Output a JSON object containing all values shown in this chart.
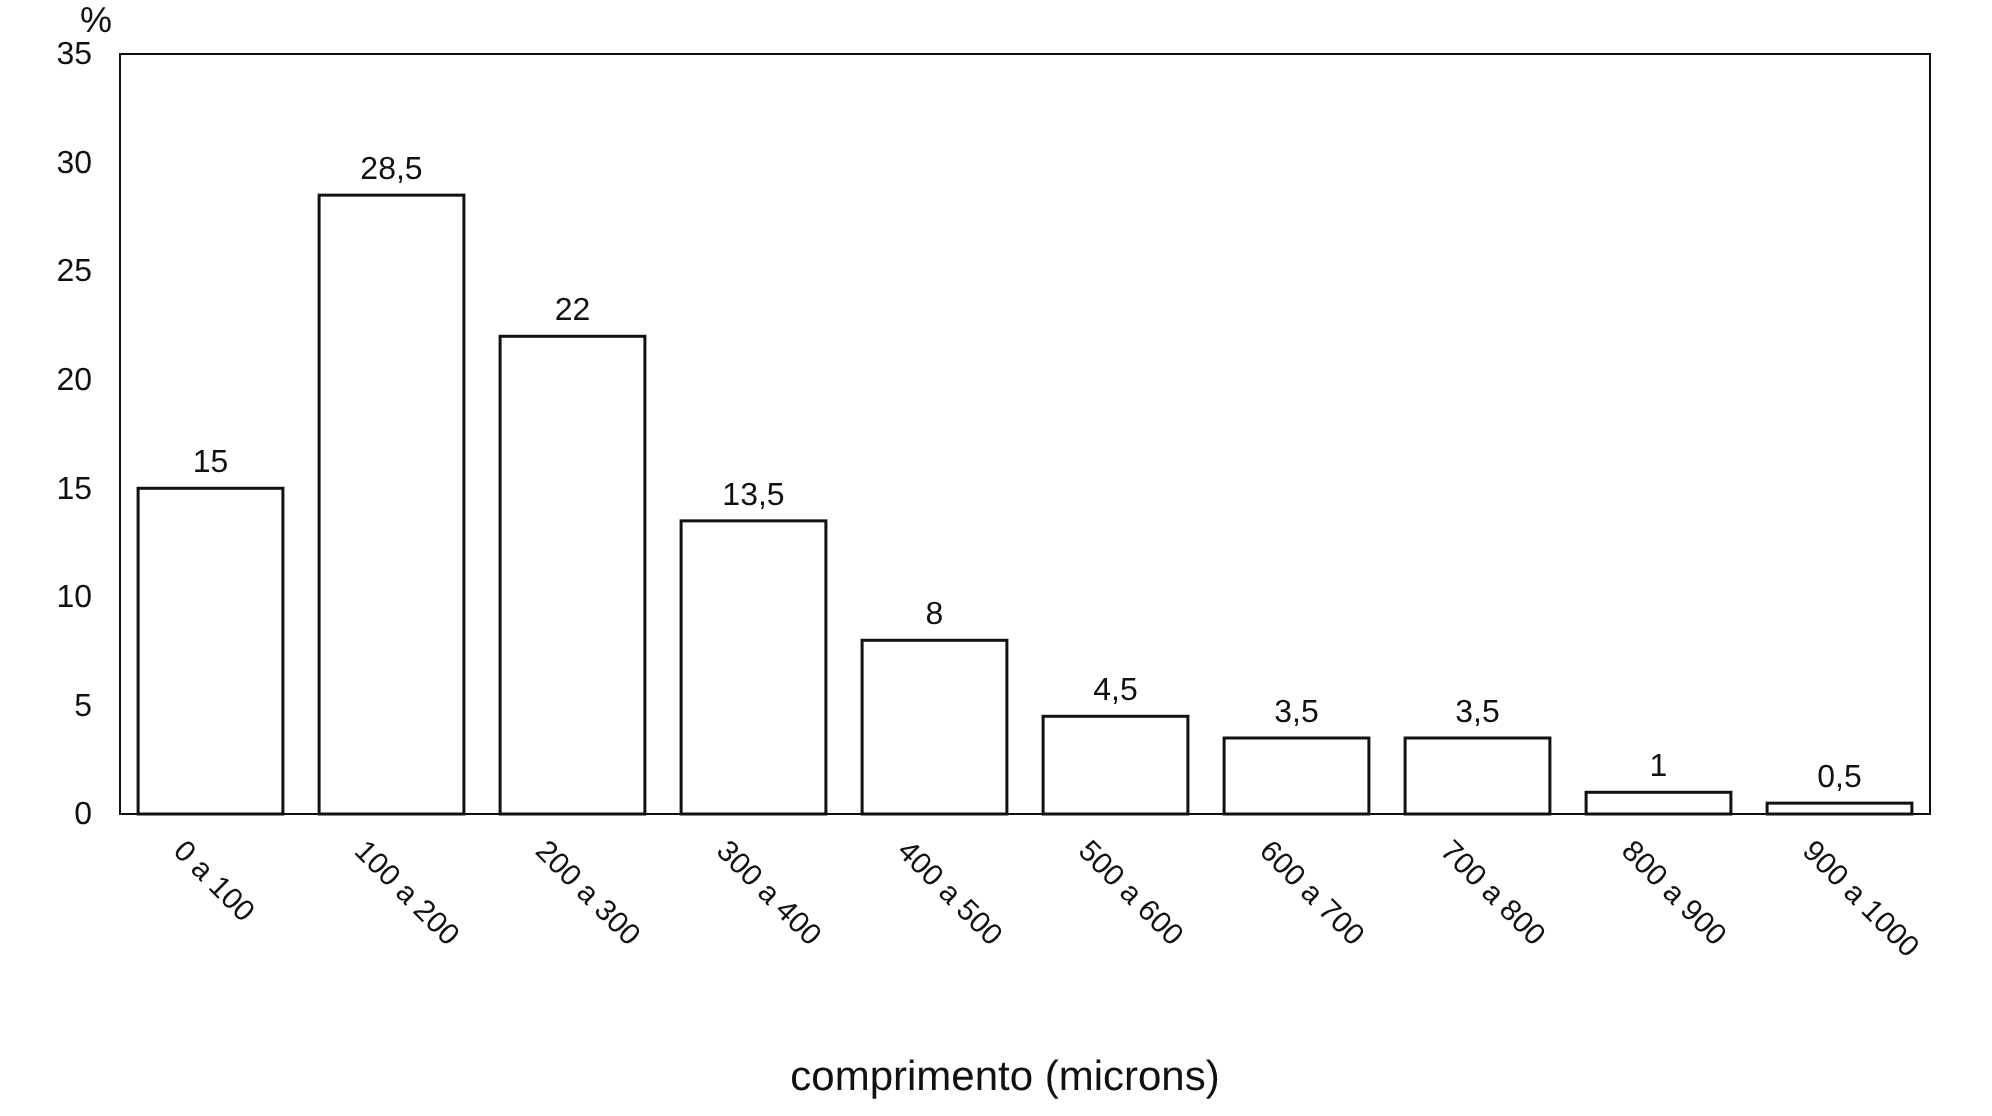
{
  "chart_data": {
    "type": "bar",
    "xlabel": "comprimento (microns)",
    "ylabel": "%",
    "categories": [
      "0 a 100",
      "100 a 200",
      "200 a 300",
      "300 a 400",
      "400 a 500",
      "500 a 600",
      "600 a 700",
      "700 a 800",
      "800 a 900",
      "900 a 1000"
    ],
    "values": [
      15,
      28.5,
      22,
      13.5,
      8,
      4.5,
      3.5,
      3.5,
      1,
      0.5
    ],
    "value_labels": [
      "15",
      "28,5",
      "22",
      "13,5",
      "8",
      "4,5",
      "3,5",
      "3,5",
      "1",
      "0,5"
    ],
    "color": "#ffffff",
    "ylim": [
      0,
      35
    ],
    "yticks": [
      0,
      5,
      10,
      15,
      20,
      25,
      30,
      35
    ],
    "grid": false
  }
}
